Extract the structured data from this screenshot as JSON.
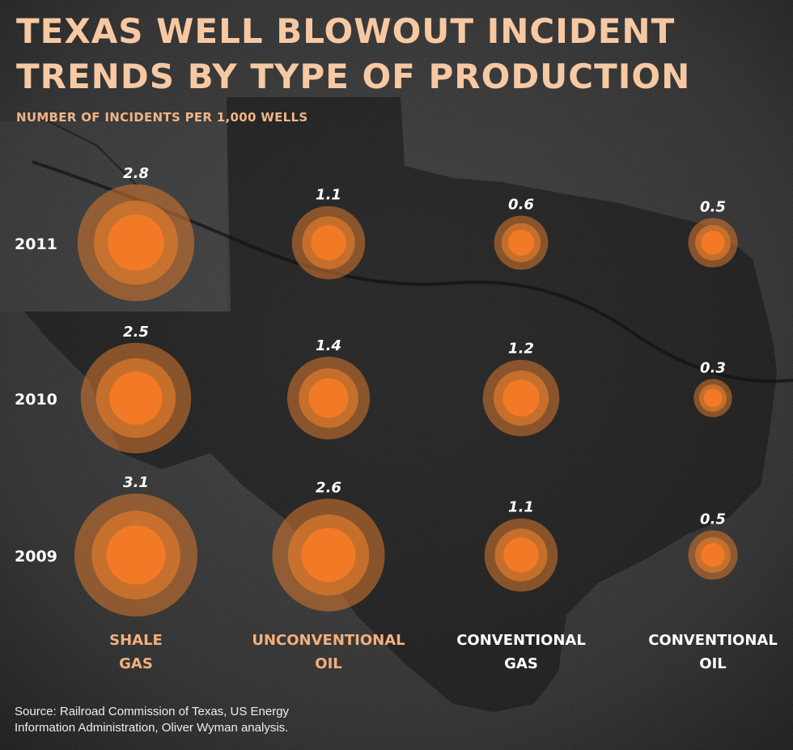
{
  "header": {
    "title_line1": "TEXAS WELL BLOWOUT INCIDENT",
    "title_line2": "TRENDS BY TYPE OF PRODUCTION",
    "subtitle": "NUMBER OF INCIDENTS PER 1,000 WELLS"
  },
  "footer": {
    "source_line1": "Source: Railroad Commission of Texas, US Energy",
    "source_line2": "Information Administration, Oliver Wyman analysis."
  },
  "colors": {
    "title": "#f7c9a3",
    "subtitle": "#f0b488",
    "bubble_outer": "#d9782e",
    "bubble_inner": "#f27a26",
    "category_highlight": "#f2b07e",
    "category_plain": "#ffffff",
    "background": "#2b2b2b"
  },
  "chart_data": {
    "type": "bubble-grid",
    "title": "TEXAS WELL BLOWOUT INCIDENT TRENDS BY TYPE OF PRODUCTION",
    "subtitle": "NUMBER OF INCIDENTS PER 1,000 WELLS",
    "rows": [
      "2011",
      "2010",
      "2009"
    ],
    "categories": [
      {
        "line1": "SHALE",
        "line2": "GAS",
        "highlight": true
      },
      {
        "line1": "UNCONVENTIONAL",
        "line2": "OIL",
        "highlight": true
      },
      {
        "line1": "CONVENTIONAL",
        "line2": "GAS",
        "highlight": false
      },
      {
        "line1": "CONVENTIONAL",
        "line2": "OIL",
        "highlight": false
      }
    ],
    "values": {
      "2011": [
        2.8,
        1.1,
        0.6,
        0.5
      ],
      "2010": [
        2.5,
        1.4,
        1.2,
        0.3
      ],
      "2009": [
        3.1,
        2.6,
        1.1,
        0.5
      ]
    },
    "labels": {
      "2011": [
        "2.8",
        "1.1",
        "0.6",
        "0.5"
      ],
      "2010": [
        "2.5",
        "1.4",
        "1.2",
        "0.3"
      ],
      "2009": [
        "3.1",
        "2.6",
        "1.1",
        "0.5"
      ]
    }
  }
}
